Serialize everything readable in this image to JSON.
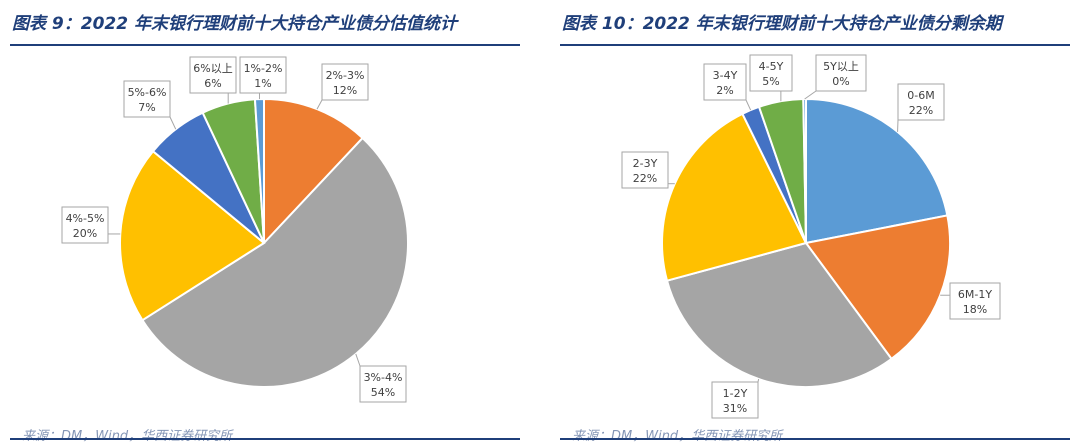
{
  "colors": {
    "title": "#1f3f7a",
    "blue": "#5b9bd5",
    "orange": "#ed7d31",
    "gray": "#a5a5a5",
    "yellow": "#ffc000",
    "darkblue": "#4472c4",
    "green": "#70ad47"
  },
  "charts": {
    "left": {
      "title": "图表 9：2022 年末银行理财前十大持仓产业债分估值统计",
      "source": "来源：DM，Wind，华西证券研究所"
    },
    "right": {
      "title": "图表 10：2022 年末银行理财前十大持仓产业债分剩余期",
      "source": "来源：DM，Wind，华西证券研究所"
    }
  },
  "chart_data": [
    {
      "type": "pie",
      "title": "图表 9：2022 年末银行理财前十大持仓产业债分估值统计",
      "slices": [
        {
          "label": "2%-3%",
          "value": 12,
          "display": "12%",
          "color": "#ed7d31"
        },
        {
          "label": "3%-4%",
          "value": 54,
          "display": "54%",
          "color": "#a5a5a5"
        },
        {
          "label": "4%-5%",
          "value": 20,
          "display": "20%",
          "color": "#ffc000"
        },
        {
          "label": "5%-6%",
          "value": 7,
          "display": "7%",
          "color": "#4472c4"
        },
        {
          "label": "6%以上",
          "value": 6,
          "display": "6%",
          "color": "#70ad47"
        },
        {
          "label": "1%-2%",
          "value": 1,
          "display": "1%",
          "color": "#5b9bd5"
        }
      ]
    },
    {
      "type": "pie",
      "title": "图表 10：2022 年末银行理财前十大持仓产业债分剩余期",
      "slices": [
        {
          "label": "0-6M",
          "value": 22,
          "display": "22%",
          "color": "#5b9bd5"
        },
        {
          "label": "6M-1Y",
          "value": 18,
          "display": "18%",
          "color": "#ed7d31"
        },
        {
          "label": "1-2Y",
          "value": 31,
          "display": "31%",
          "color": "#a5a5a5"
        },
        {
          "label": "2-3Y",
          "value": 22,
          "display": "22%",
          "color": "#ffc000"
        },
        {
          "label": "3-4Y",
          "value": 2,
          "display": "2%",
          "color": "#4472c4"
        },
        {
          "label": "4-5Y",
          "value": 5,
          "display": "5%",
          "color": "#70ad47"
        },
        {
          "label": "5Y以上",
          "value": 0.3,
          "display": "0%",
          "color": "#5b9bd5"
        }
      ]
    }
  ]
}
